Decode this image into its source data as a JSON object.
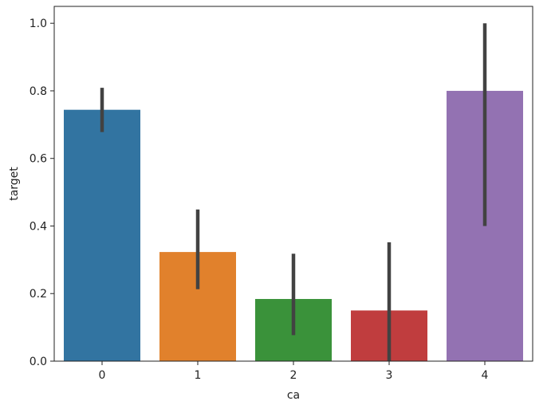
{
  "chart_data": {
    "type": "bar",
    "title": "",
    "xlabel": "ca",
    "ylabel": "target",
    "categories": [
      "0",
      "1",
      "2",
      "3",
      "4"
    ],
    "values": [
      0.744,
      0.323,
      0.184,
      0.15,
      0.8
    ],
    "error_low": [
      0.678,
      0.213,
      0.077,
      0.0,
      0.4
    ],
    "error_high": [
      0.809,
      0.449,
      0.318,
      0.352,
      1.0
    ],
    "ylim": [
      0.0,
      1.05
    ],
    "yticks": [
      0.0,
      0.2,
      0.4,
      0.6,
      0.8,
      1.0
    ],
    "ytick_labels": [
      "0.0",
      "0.2",
      "0.4",
      "0.6",
      "0.8",
      "1.0"
    ],
    "colors": [
      "#3274a1",
      "#e1812c",
      "#3a923a",
      "#c03d3e",
      "#9372b2"
    ],
    "error_color": "#424242",
    "grid": false,
    "legend": "none"
  }
}
